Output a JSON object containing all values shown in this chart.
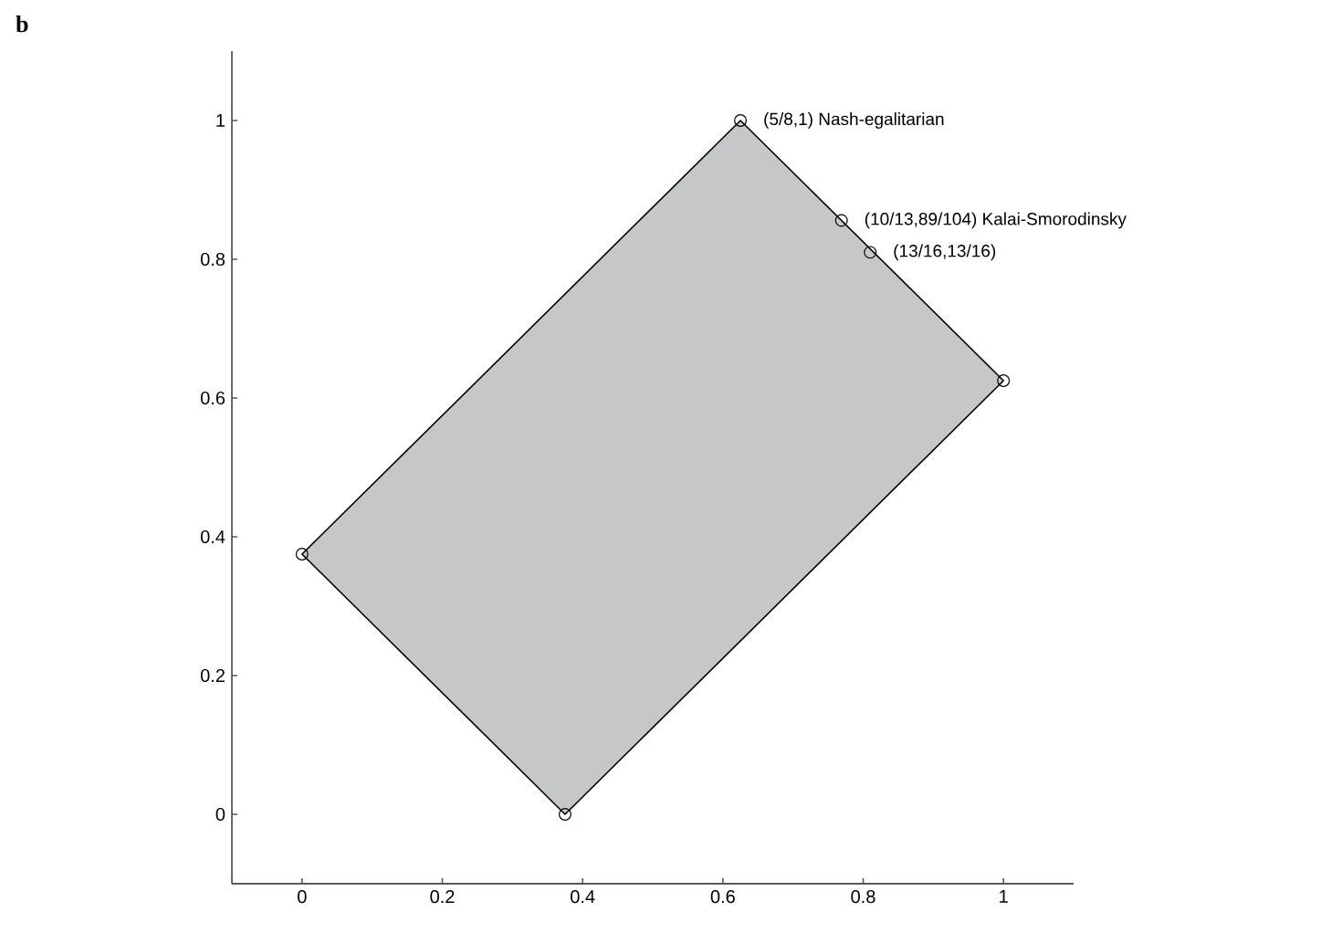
{
  "chart_data": {
    "type": "scatter",
    "annotations": [
      "b",
      {
        "text": "(5/8,1)  Nash-egalitarian",
        "x": 0.625,
        "y": 1
      },
      {
        "text": "(10/13,89/104)  Kalai-Smorodinsky",
        "x": 0.769,
        "y": 0.856
      },
      {
        "text": "(13/16,13/16)",
        "x": 0.81,
        "y": 0.81
      }
    ],
    "series": [
      {
        "type": "area",
        "color": "#c6c7c9",
        "x": [
          0,
          0.625,
          1,
          0.375
        ],
        "values": [
          0.375,
          1,
          0.625,
          0
        ]
      },
      {
        "color": "#000000",
        "marker": "circle",
        "x": [
          0,
          0.375,
          1,
          0.625,
          0.769,
          0.81
        ],
        "values": [
          0.375,
          0,
          0.625,
          1,
          0.856,
          0.81
        ]
      }
    ],
    "xlim": [
      -0.1,
      1.1
    ],
    "ylim": [
      -0.1,
      1.1
    ],
    "xticks": [
      0,
      0.2,
      0.4,
      0.6,
      0.8,
      1
    ],
    "yticks": [
      0,
      0.2,
      0.4,
      0.6,
      0.8,
      1
    ]
  }
}
